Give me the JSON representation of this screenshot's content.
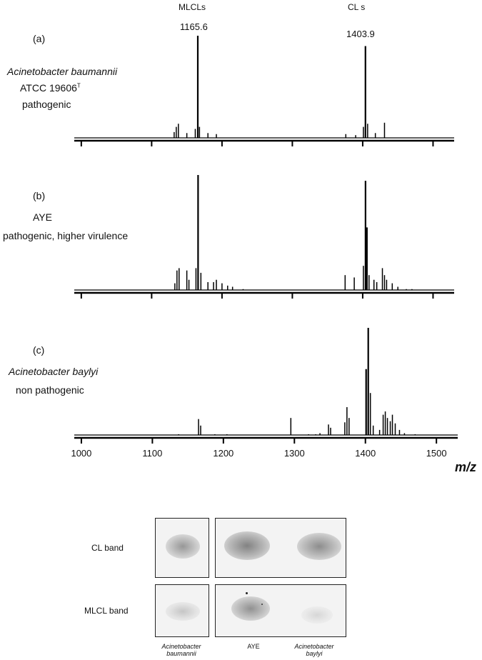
{
  "figure": {
    "peak_group_labels": [
      "MLCLs",
      "CL s"
    ],
    "peak_mz_labels": [
      "1165.6",
      "1403.9"
    ],
    "x_axis_label": "m/z",
    "panels": [
      {
        "tag": "(a)",
        "name": "Acinetobacter baumannii",
        "strain": "ATCC 19606",
        "strain_sup": "T",
        "note": "pathogenic"
      },
      {
        "tag": "(b)",
        "name": "AYE",
        "note": "pathogenic, higher virulence"
      },
      {
        "tag": "(c)",
        "name": "Acinetobacter baylyi",
        "note": "non pathogenic"
      }
    ]
  },
  "gel": {
    "row_labels": [
      "CL band",
      "MLCL band"
    ],
    "column_labels": [
      "Acinetobacter baumannii",
      "AYE",
      "Acinetobacter baylyi"
    ],
    "column_label_lines": [
      [
        "Acinetobacter",
        "baumannii"
      ],
      [
        "AYE"
      ],
      [
        "Acinetobacter",
        "baylyi"
      ]
    ]
  },
  "chart_data": [
    {
      "type": "line",
      "title": "(a) Acinetobacter baumannii ATCC 19606T pathogenic",
      "xlabel": "m/z",
      "xlim": [
        990,
        1530
      ],
      "ylim": [
        0,
        100
      ],
      "peaks": [
        {
          "x": 1132,
          "y": 7
        },
        {
          "x": 1135,
          "y": 12
        },
        {
          "x": 1138,
          "y": 15
        },
        {
          "x": 1150,
          "y": 6
        },
        {
          "x": 1162,
          "y": 10
        },
        {
          "x": 1165.6,
          "y": 100
        },
        {
          "x": 1168,
          "y": 12
        },
        {
          "x": 1180,
          "y": 6
        },
        {
          "x": 1192,
          "y": 5
        },
        {
          "x": 1376,
          "y": 5
        },
        {
          "x": 1390,
          "y": 4
        },
        {
          "x": 1401,
          "y": 12
        },
        {
          "x": 1403.9,
          "y": 90
        },
        {
          "x": 1407,
          "y": 15
        },
        {
          "x": 1418,
          "y": 6
        },
        {
          "x": 1431,
          "y": 16
        }
      ]
    },
    {
      "type": "line",
      "title": "(b) AYE pathogenic, higher virulence",
      "xlabel": "m/z",
      "xlim": [
        990,
        1530
      ],
      "ylim": [
        0,
        100
      ],
      "peaks": [
        {
          "x": 1133,
          "y": 7
        },
        {
          "x": 1136,
          "y": 18
        },
        {
          "x": 1139,
          "y": 20
        },
        {
          "x": 1150,
          "y": 18
        },
        {
          "x": 1153,
          "y": 10
        },
        {
          "x": 1163,
          "y": 20
        },
        {
          "x": 1166,
          "y": 100
        },
        {
          "x": 1170,
          "y": 16
        },
        {
          "x": 1180,
          "y": 8
        },
        {
          "x": 1188,
          "y": 8
        },
        {
          "x": 1192,
          "y": 10
        },
        {
          "x": 1200,
          "y": 7
        },
        {
          "x": 1208,
          "y": 5
        },
        {
          "x": 1215,
          "y": 4
        },
        {
          "x": 1230,
          "y": 2
        },
        {
          "x": 1375,
          "y": 14
        },
        {
          "x": 1388,
          "y": 12
        },
        {
          "x": 1401,
          "y": 22
        },
        {
          "x": 1404,
          "y": 95
        },
        {
          "x": 1406,
          "y": 55
        },
        {
          "x": 1409,
          "y": 14
        },
        {
          "x": 1416,
          "y": 10
        },
        {
          "x": 1420,
          "y": 8
        },
        {
          "x": 1428,
          "y": 20
        },
        {
          "x": 1431,
          "y": 14
        },
        {
          "x": 1434,
          "y": 10
        },
        {
          "x": 1442,
          "y": 7
        },
        {
          "x": 1450,
          "y": 4
        },
        {
          "x": 1462,
          "y": 2
        },
        {
          "x": 1470,
          "y": 2
        }
      ]
    },
    {
      "type": "line",
      "title": "(c) Acinetobacter baylyi non pathogenic",
      "xlabel": "m/z",
      "xlim": [
        990,
        1530
      ],
      "ylim": [
        0,
        100
      ],
      "xticks": [
        1000,
        1100,
        1200,
        1300,
        1400,
        1500
      ],
      "peaks": [
        {
          "x": 1137,
          "y": 2
        },
        {
          "x": 1165,
          "y": 16
        },
        {
          "x": 1168,
          "y": 10
        },
        {
          "x": 1188,
          "y": 2
        },
        {
          "x": 1205,
          "y": 2
        },
        {
          "x": 1295,
          "y": 17
        },
        {
          "x": 1320,
          "y": 2
        },
        {
          "x": 1330,
          "y": 2
        },
        {
          "x": 1336,
          "y": 3
        },
        {
          "x": 1348,
          "y": 11
        },
        {
          "x": 1351,
          "y": 8
        },
        {
          "x": 1371,
          "y": 13
        },
        {
          "x": 1374,
          "y": 27
        },
        {
          "x": 1377,
          "y": 17
        },
        {
          "x": 1401,
          "y": 62
        },
        {
          "x": 1404,
          "y": 100
        },
        {
          "x": 1407,
          "y": 40
        },
        {
          "x": 1411,
          "y": 10
        },
        {
          "x": 1420,
          "y": 6
        },
        {
          "x": 1425,
          "y": 20
        },
        {
          "x": 1428,
          "y": 23
        },
        {
          "x": 1431,
          "y": 17
        },
        {
          "x": 1435,
          "y": 14
        },
        {
          "x": 1438,
          "y": 20
        },
        {
          "x": 1442,
          "y": 12
        },
        {
          "x": 1448,
          "y": 6
        },
        {
          "x": 1455,
          "y": 3
        },
        {
          "x": 1470,
          "y": 2
        }
      ]
    }
  ]
}
